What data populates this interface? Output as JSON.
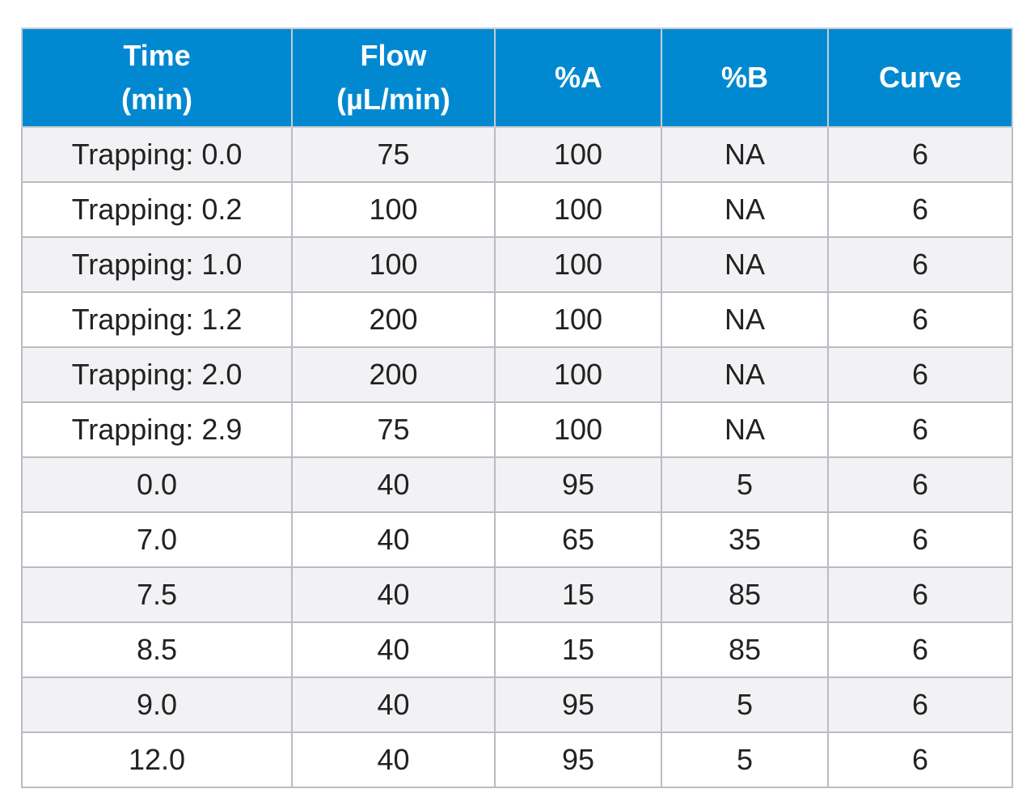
{
  "table": {
    "headers": [
      [
        "Time",
        "(min)"
      ],
      [
        "Flow",
        "(µL/min)"
      ],
      [
        "%A"
      ],
      [
        "%B"
      ],
      [
        "Curve"
      ]
    ],
    "rows": [
      [
        "Trapping: 0.0",
        "75",
        "100",
        "NA",
        "6"
      ],
      [
        "Trapping: 0.2",
        "100",
        "100",
        "NA",
        "6"
      ],
      [
        "Trapping: 1.0",
        "100",
        "100",
        "NA",
        "6"
      ],
      [
        "Trapping: 1.2",
        "200",
        "100",
        "NA",
        "6"
      ],
      [
        "Trapping: 2.0",
        "200",
        "100",
        "NA",
        "6"
      ],
      [
        "Trapping: 2.9",
        "75",
        "100",
        "NA",
        "6"
      ],
      [
        "0.0",
        "40",
        "95",
        "5",
        "6"
      ],
      [
        "7.0",
        "40",
        "65",
        "35",
        "6"
      ],
      [
        "7.5",
        "40",
        "15",
        "85",
        "6"
      ],
      [
        "8.5",
        "40",
        "15",
        "85",
        "6"
      ],
      [
        "9.0",
        "40",
        "95",
        "5",
        "6"
      ],
      [
        "12.0",
        "40",
        "95",
        "5",
        "6"
      ]
    ],
    "header_color": "#0089d0",
    "header_text_color": "#ffffff",
    "stripe_color": "#f2f2f5"
  }
}
